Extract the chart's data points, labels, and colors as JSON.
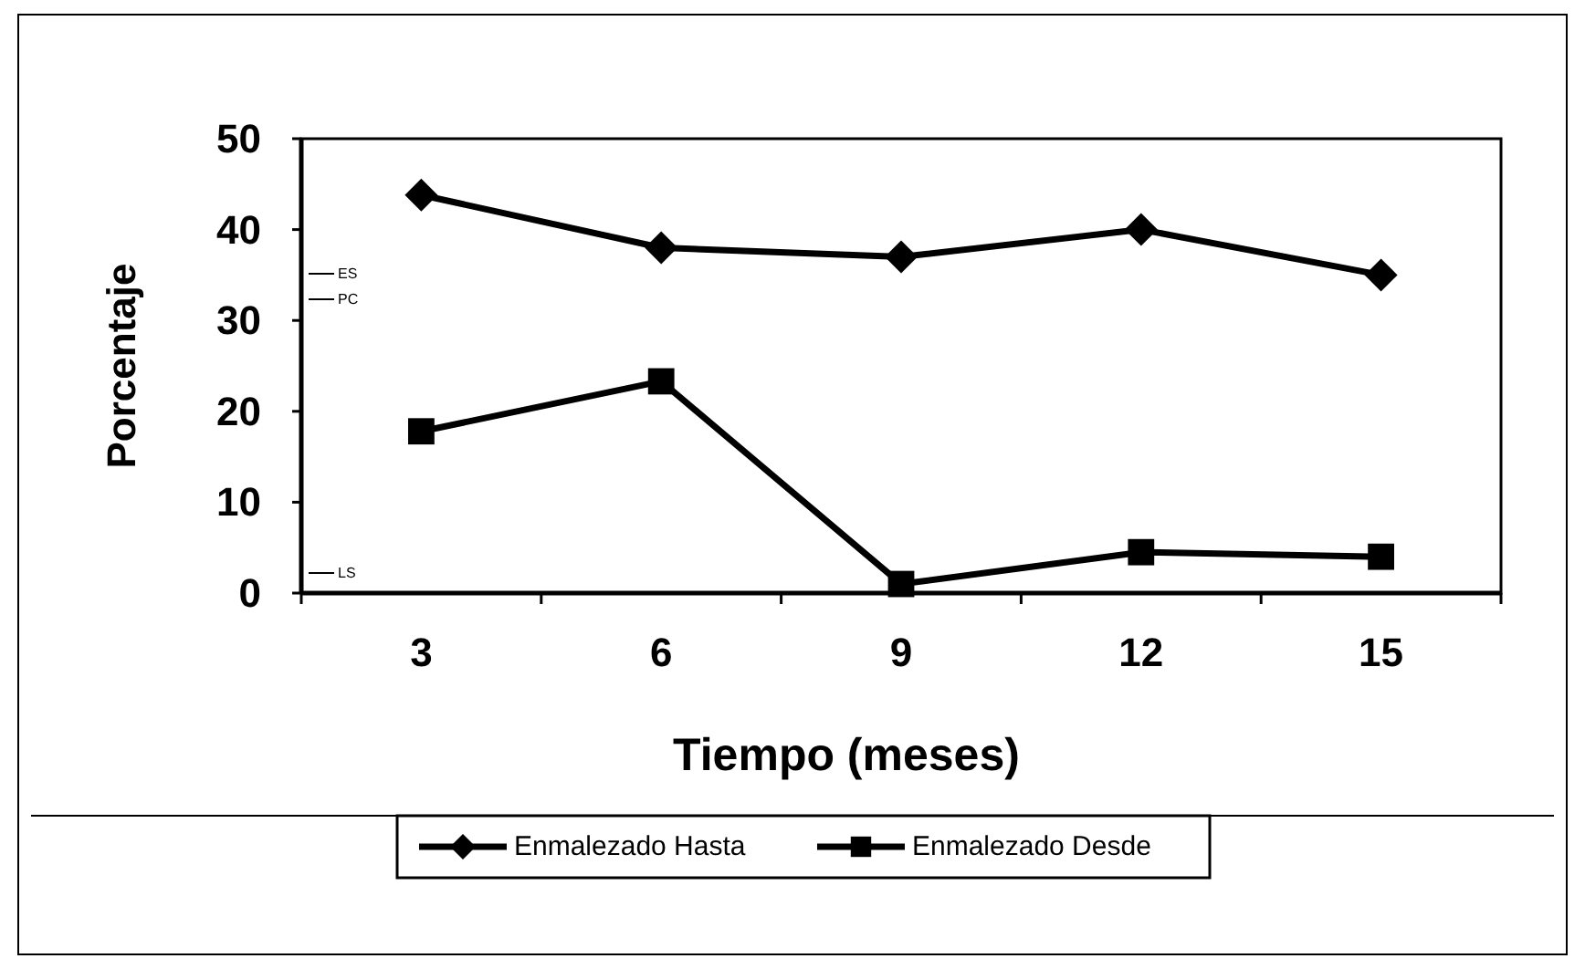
{
  "chart_data": {
    "type": "line",
    "xlabel": "Tiempo (meses)",
    "ylabel": "Porcentaje",
    "categories": [
      "3",
      "6",
      "9",
      "12",
      "15"
    ],
    "series": [
      {
        "name": "Enmalezado Hasta",
        "color": "#000000",
        "marker": "diamond",
        "values": [
          43.8,
          38,
          37,
          40,
          35
        ]
      },
      {
        "name": "Enmalezado Desde",
        "color": "#000000",
        "marker": "square",
        "values": [
          17.8,
          23.3,
          1,
          4.5,
          4
        ]
      }
    ],
    "ylim": [
      0,
      50
    ],
    "yticks": [
      0,
      10,
      20,
      30,
      40,
      50
    ],
    "grid": false,
    "legend": "bottom",
    "line_style": "solid",
    "annotations": [
      "ES",
      "PC",
      "LS"
    ]
  }
}
